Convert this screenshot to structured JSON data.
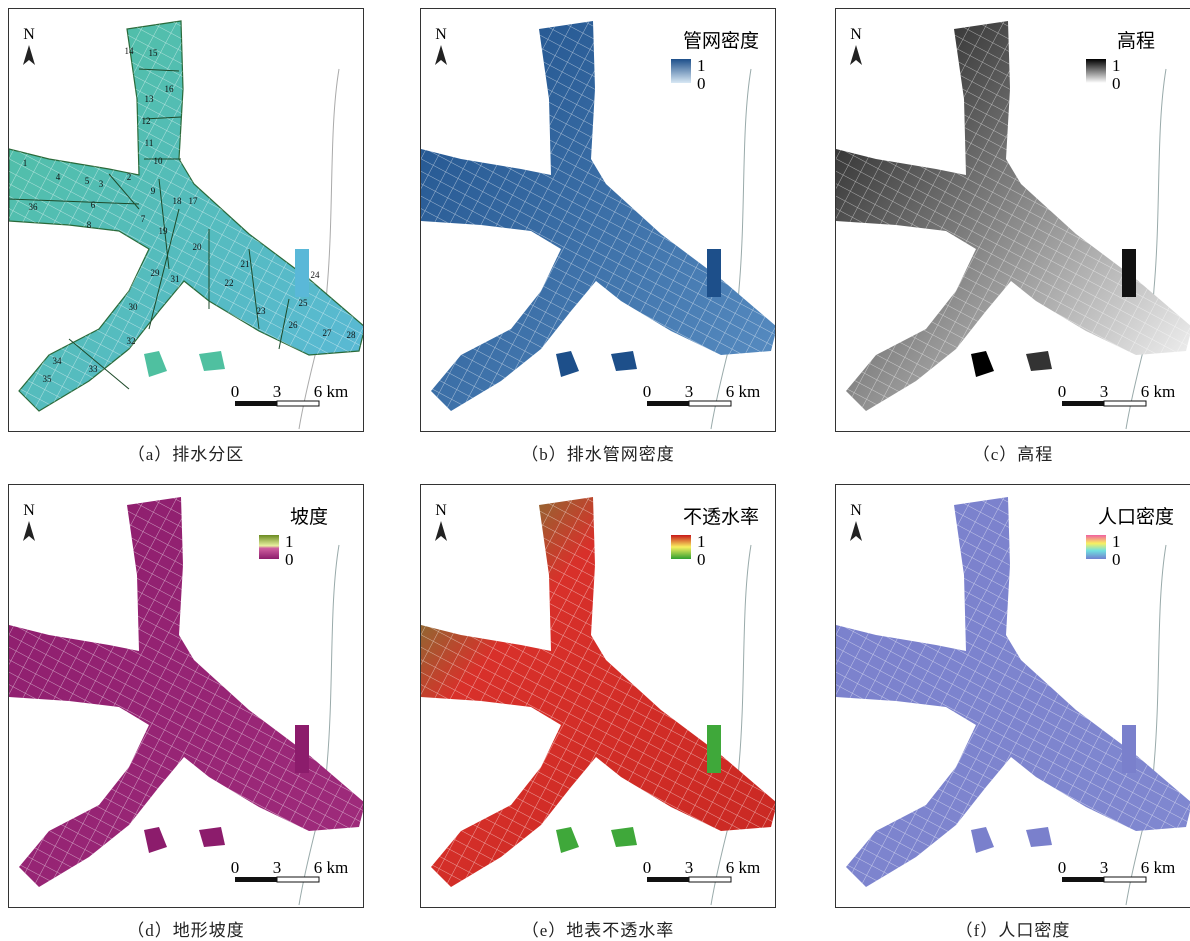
{
  "panels": [
    {
      "caption": "（a）排水分区",
      "north": "N",
      "scale": [
        "0",
        "3",
        "6 km"
      ],
      "zones": [
        "1",
        "2",
        "3",
        "4",
        "5",
        "6",
        "7",
        "8",
        "9",
        "10",
        "11",
        "12",
        "13",
        "14",
        "15",
        "16",
        "17",
        "18",
        "19",
        "20",
        "21",
        "22",
        "23",
        "24",
        "25",
        "26",
        "27",
        "28",
        "29",
        "30",
        "31",
        "32",
        "33",
        "34",
        "35",
        "36"
      ]
    },
    {
      "caption": "（b）排水管网密度",
      "north": "N",
      "scale": [
        "0",
        "3",
        "6 km"
      ],
      "legend": {
        "title": "管网密度",
        "max": 1,
        "min": 0
      }
    },
    {
      "caption": "（c）高程",
      "north": "N",
      "scale": [
        "0",
        "3",
        "6 km"
      ],
      "legend": {
        "title": "高程",
        "max": 1,
        "min": 0
      }
    },
    {
      "caption": "（d）地形坡度",
      "north": "N",
      "scale": [
        "0",
        "3",
        "6 km"
      ],
      "legend": {
        "title": "坡度",
        "max": 1,
        "min": 0
      }
    },
    {
      "caption": "（e）地表不透水率",
      "north": "N",
      "scale": [
        "0",
        "3",
        "6 km"
      ],
      "legend": {
        "title": "不透水率",
        "max": 1,
        "min": 0
      }
    },
    {
      "caption": "（f）人口密度",
      "north": "N",
      "scale": [
        "0",
        "3",
        "6 km"
      ],
      "legend": {
        "title": "人口密度",
        "max": 1,
        "min": 0
      }
    }
  ]
}
